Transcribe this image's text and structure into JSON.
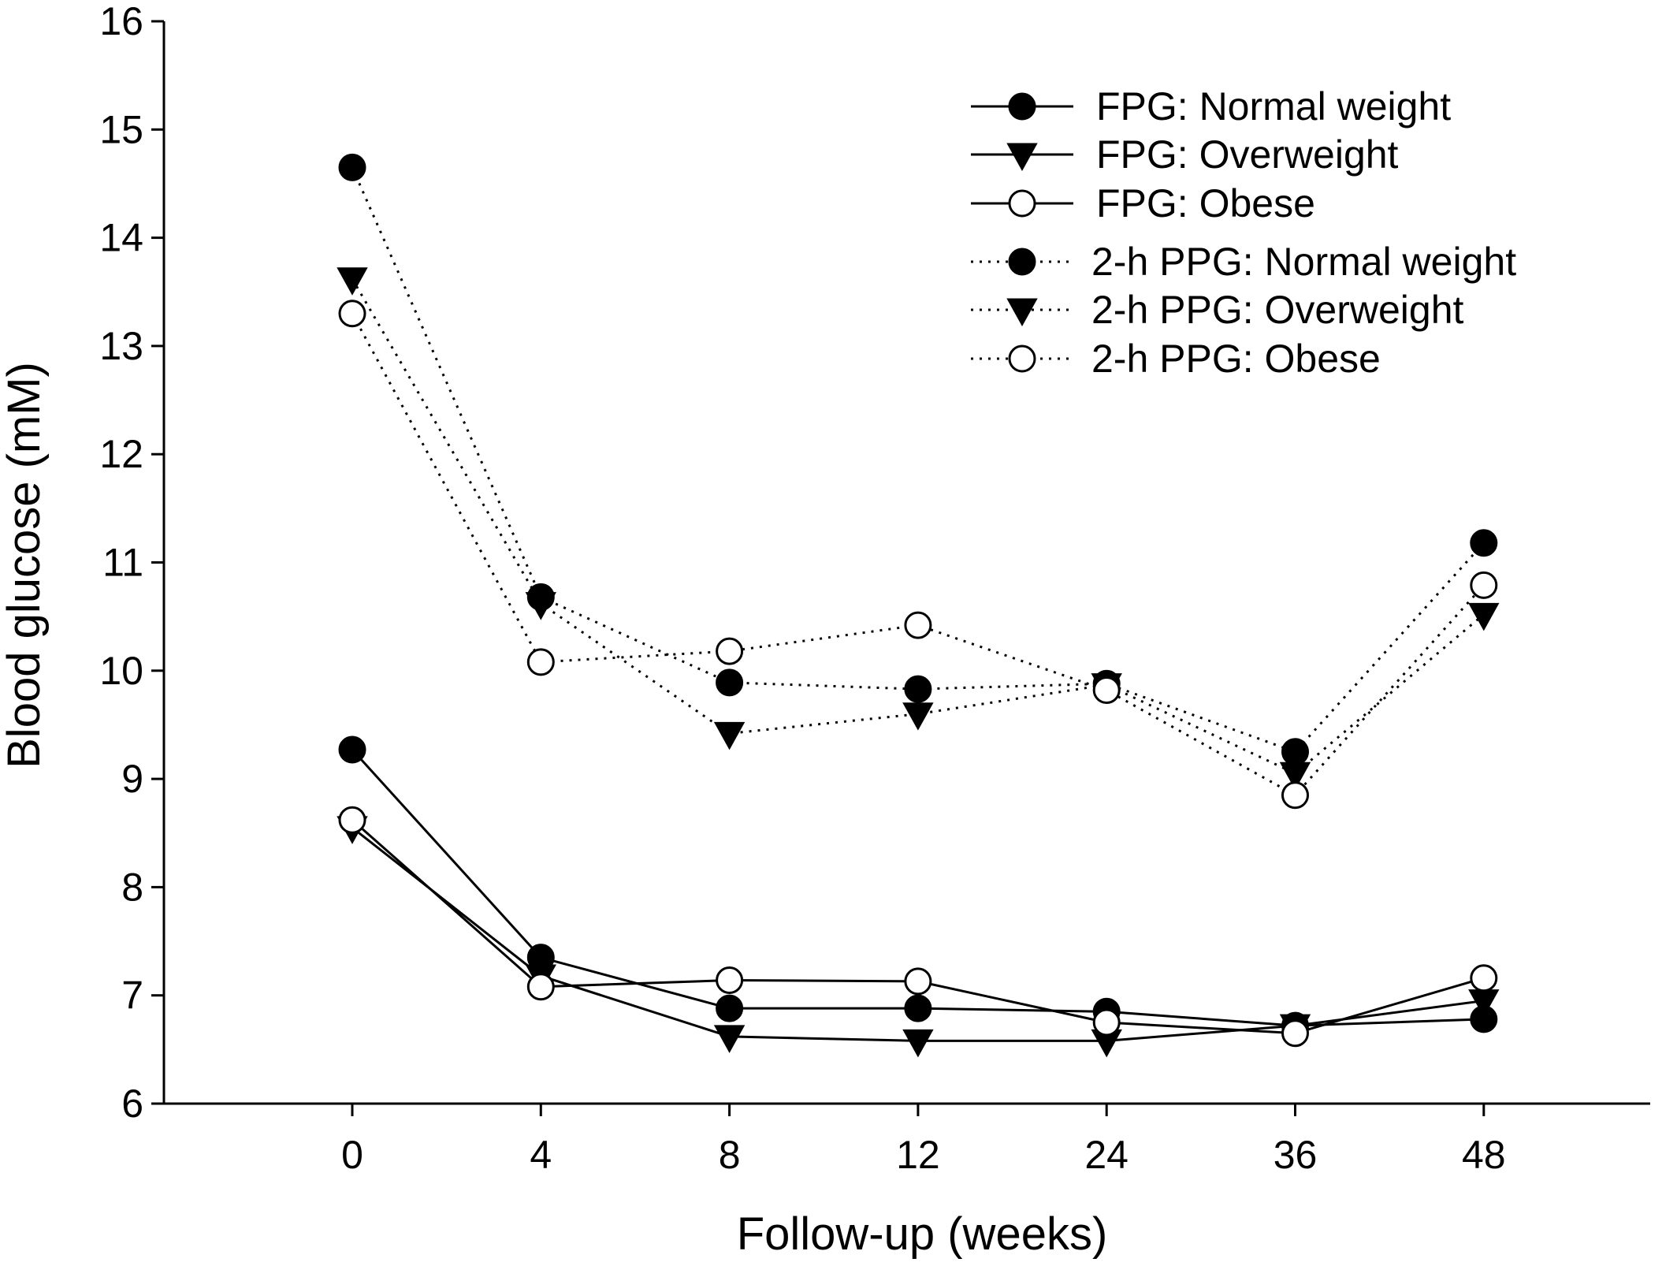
{
  "chart_data": {
    "type": "line",
    "xlabel": "Follow-up (weeks)",
    "ylabel": "Blood glucose (mM)",
    "x": [
      "0",
      "4",
      "8",
      "12",
      "24",
      "36",
      "48"
    ],
    "ylim": [
      6,
      16
    ],
    "yticks": [
      "6",
      "7",
      "8",
      "9",
      "10",
      "11",
      "12",
      "13",
      "14",
      "15",
      "16"
    ],
    "grid": false,
    "legend_position": "top-right",
    "series": [
      {
        "name": "FPG: Normal weight",
        "marker": "filled-circle",
        "line": "solid",
        "values": [
          9.27,
          7.35,
          6.88,
          6.88,
          6.85,
          6.72,
          6.78
        ]
      },
      {
        "name": "FPG: Overweight",
        "marker": "filled-triangle-down",
        "line": "solid",
        "values": [
          8.55,
          7.18,
          6.62,
          6.58,
          6.58,
          6.72,
          6.95
        ]
      },
      {
        "name": "FPG: Obese",
        "marker": "open-circle",
        "line": "solid",
        "values": [
          8.62,
          7.08,
          7.14,
          7.13,
          6.75,
          6.65,
          7.16
        ]
      },
      {
        "name": "2-h PPG: Normal weight",
        "marker": "filled-circle",
        "line": "dotted",
        "values": [
          14.65,
          10.68,
          9.89,
          9.83,
          9.88,
          9.25,
          11.18
        ]
      },
      {
        "name": "2-h PPG: Overweight",
        "marker": "filled-triangle-down",
        "line": "dotted",
        "values": [
          13.62,
          10.62,
          9.42,
          9.6,
          9.87,
          9.05,
          10.52
        ]
      },
      {
        "name": "2-h PPG: Obese",
        "marker": "open-circle",
        "line": "dotted",
        "values": [
          13.3,
          10.08,
          10.18,
          10.42,
          9.82,
          8.85,
          10.79
        ]
      }
    ]
  }
}
